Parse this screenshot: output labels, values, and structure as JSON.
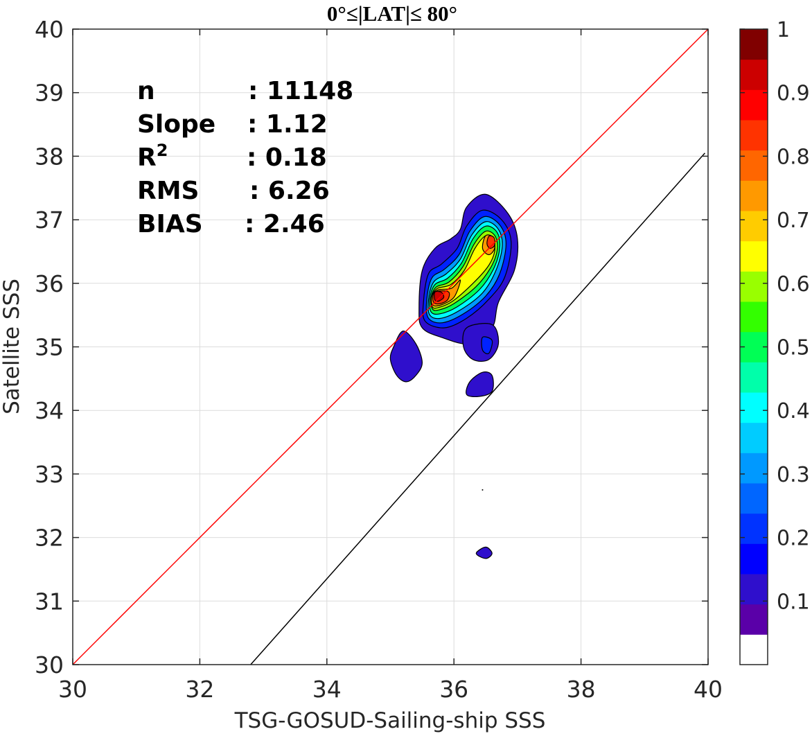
{
  "chart_data": {
    "type": "contour",
    "title": "0°≤|LAT|≤ 80°",
    "xlabel": "TSG-GOSUD-Sailing-ship SSS",
    "ylabel": "Satellite SSS",
    "xlim": [
      30,
      40
    ],
    "ylim": [
      30,
      40
    ],
    "xticks": [
      "30",
      "32",
      "34",
      "36",
      "38",
      "40"
    ],
    "yticks": [
      "30",
      "31",
      "32",
      "33",
      "34",
      "35",
      "36",
      "37",
      "38",
      "39",
      "40"
    ],
    "grid": true,
    "stats": [
      {
        "label": "n",
        "value": ": 11148"
      },
      {
        "label": "Slope",
        "value": ": 1.12"
      },
      {
        "label": "R",
        "sup": "2",
        "value": ": 0.18"
      },
      {
        "label": "RMS",
        "value": ": 6.26"
      },
      {
        "label": "BIAS",
        "value": ": 2.46"
      }
    ],
    "lines": [
      {
        "name": "1:1",
        "color": "#ff0000",
        "points": [
          [
            30,
            30
          ],
          [
            40,
            40
          ]
        ]
      },
      {
        "name": "fit",
        "color": "#000000",
        "points": [
          [
            32.8,
            30
          ],
          [
            39.95,
            38.05
          ]
        ]
      }
    ],
    "colorbar": {
      "ticks": [
        "0.1",
        "0.2",
        "0.3",
        "0.4",
        "0.5",
        "0.6",
        "0.7",
        "0.8",
        "0.9",
        "1"
      ],
      "range": [
        0,
        1
      ],
      "colors": [
        "#ffffff",
        "#5a00a8",
        "#2f0fcc",
        "#0000ff",
        "#0033ff",
        "#0066ff",
        "#0099ff",
        "#00ccff",
        "#00ffff",
        "#00ffaa",
        "#00ff55",
        "#33ff00",
        "#99ff00",
        "#ffff00",
        "#ffcc00",
        "#ff9900",
        "#ff6600",
        "#ff3300",
        "#ff0000",
        "#cc0000",
        "#800000"
      ]
    },
    "contours": [
      {
        "level": 0.05,
        "color": "#2f0fcc",
        "points": [
          [
            35.5,
            35.3
          ],
          [
            35.45,
            35.6
          ],
          [
            35.5,
            36.2
          ],
          [
            35.7,
            36.55
          ],
          [
            35.95,
            36.7
          ],
          [
            36.1,
            36.85
          ],
          [
            36.2,
            37.2
          ],
          [
            36.5,
            37.4
          ],
          [
            36.85,
            37.1
          ],
          [
            37.0,
            36.7
          ],
          [
            36.95,
            36.2
          ],
          [
            36.7,
            35.7
          ],
          [
            36.6,
            35.3
          ],
          [
            36.25,
            35.05
          ],
          [
            35.8,
            35.15
          ]
        ]
      },
      {
        "level": 0.05,
        "color": "#2f0fcc",
        "points": [
          [
            35.05,
            35.0
          ],
          [
            35.0,
            34.8
          ],
          [
            35.1,
            34.55
          ],
          [
            35.25,
            34.45
          ],
          [
            35.4,
            34.55
          ],
          [
            35.5,
            34.75
          ],
          [
            35.4,
            35.05
          ],
          [
            35.2,
            35.25
          ]
        ]
      },
      {
        "level": 0.05,
        "color": "#2f0fcc",
        "points": [
          [
            36.2,
            35.3
          ],
          [
            36.6,
            35.35
          ],
          [
            36.7,
            35.05
          ],
          [
            36.55,
            34.8
          ],
          [
            36.3,
            34.8
          ],
          [
            36.15,
            35.0
          ]
        ]
      },
      {
        "level": 0.05,
        "color": "#2f0fcc",
        "points": [
          [
            36.25,
            34.45
          ],
          [
            36.45,
            34.6
          ],
          [
            36.6,
            34.55
          ],
          [
            36.6,
            34.3
          ],
          [
            36.4,
            34.22
          ],
          [
            36.2,
            34.25
          ]
        ]
      },
      {
        "level": 0.05,
        "color": "#2f0fcc",
        "points": [
          [
            36.35,
            31.75
          ],
          [
            36.5,
            31.85
          ],
          [
            36.6,
            31.75
          ],
          [
            36.5,
            31.67
          ]
        ]
      },
      {
        "level": 0.15,
        "color": "#0022ff",
        "points": [
          [
            36.45,
            35.15
          ],
          [
            36.6,
            35.1
          ],
          [
            36.55,
            34.9
          ],
          [
            36.45,
            34.95
          ]
        ]
      },
      {
        "level": 0.15,
        "color": "#0022ff",
        "points": [
          [
            35.55,
            35.4
          ],
          [
            35.52,
            35.7
          ],
          [
            35.6,
            36.15
          ],
          [
            35.8,
            36.3
          ],
          [
            36.05,
            36.55
          ],
          [
            36.2,
            36.9
          ],
          [
            36.45,
            37.15
          ],
          [
            36.75,
            37.0
          ],
          [
            36.9,
            36.65
          ],
          [
            36.8,
            36.1
          ],
          [
            36.55,
            35.75
          ],
          [
            36.2,
            35.45
          ],
          [
            35.85,
            35.3
          ]
        ]
      },
      {
        "level": 0.25,
        "color": "#0099ff",
        "points": [
          [
            35.6,
            35.45
          ],
          [
            35.57,
            35.72
          ],
          [
            35.65,
            36.08
          ],
          [
            35.85,
            36.22
          ],
          [
            36.08,
            36.45
          ],
          [
            36.25,
            36.82
          ],
          [
            36.48,
            37.05
          ],
          [
            36.72,
            36.92
          ],
          [
            36.82,
            36.62
          ],
          [
            36.72,
            36.15
          ],
          [
            36.5,
            35.8
          ],
          [
            36.15,
            35.52
          ],
          [
            35.82,
            35.38
          ]
        ]
      },
      {
        "level": 0.35,
        "color": "#00ffff",
        "points": [
          [
            35.62,
            35.5
          ],
          [
            35.6,
            35.74
          ],
          [
            35.68,
            36.02
          ],
          [
            35.88,
            36.15
          ],
          [
            36.1,
            36.38
          ],
          [
            36.28,
            36.76
          ],
          [
            36.5,
            36.97
          ],
          [
            36.7,
            36.85
          ],
          [
            36.76,
            36.58
          ],
          [
            36.66,
            36.2
          ],
          [
            36.45,
            35.85
          ],
          [
            36.1,
            35.58
          ],
          [
            35.8,
            35.45
          ]
        ]
      },
      {
        "level": 0.45,
        "color": "#00ff55",
        "points": [
          [
            35.64,
            35.55
          ],
          [
            35.62,
            35.76
          ],
          [
            35.7,
            35.98
          ],
          [
            35.9,
            36.08
          ],
          [
            36.12,
            36.32
          ],
          [
            36.3,
            36.7
          ],
          [
            36.5,
            36.9
          ],
          [
            36.68,
            36.8
          ],
          [
            36.72,
            36.55
          ],
          [
            36.62,
            36.22
          ],
          [
            36.4,
            35.9
          ],
          [
            36.05,
            35.63
          ],
          [
            35.78,
            35.52
          ]
        ]
      },
      {
        "level": 0.55,
        "color": "#99ff00",
        "points": [
          [
            35.66,
            35.6
          ],
          [
            35.64,
            35.78
          ],
          [
            35.72,
            35.94
          ],
          [
            35.92,
            36.02
          ],
          [
            36.14,
            36.26
          ],
          [
            36.32,
            36.62
          ],
          [
            36.5,
            36.82
          ],
          [
            36.65,
            36.74
          ],
          [
            36.68,
            36.52
          ],
          [
            36.58,
            36.25
          ],
          [
            36.35,
            35.95
          ],
          [
            36.0,
            35.68
          ],
          [
            35.76,
            35.58
          ]
        ]
      },
      {
        "level": 0.65,
        "color": "#ffff00",
        "points": [
          [
            35.66,
            35.63
          ],
          [
            35.65,
            35.8
          ],
          [
            35.74,
            35.92
          ],
          [
            35.95,
            35.98
          ],
          [
            36.16,
            36.2
          ],
          [
            36.33,
            36.55
          ],
          [
            36.5,
            36.75
          ],
          [
            36.62,
            36.7
          ],
          [
            36.64,
            36.5
          ],
          [
            36.54,
            36.27
          ],
          [
            36.3,
            36.0
          ],
          [
            35.98,
            35.72
          ],
          [
            35.76,
            35.62
          ]
        ]
      },
      {
        "level": 0.75,
        "color": "#ff9900",
        "points": [
          [
            35.66,
            35.66
          ],
          [
            35.66,
            35.82
          ],
          [
            35.76,
            35.9
          ],
          [
            35.96,
            35.92
          ],
          [
            36.1,
            36.05
          ],
          [
            36.0,
            35.78
          ],
          [
            35.8,
            35.66
          ]
        ]
      },
      {
        "level": 0.75,
        "color": "#ff9900",
        "points": [
          [
            36.45,
            36.55
          ],
          [
            36.5,
            36.75
          ],
          [
            36.62,
            36.72
          ],
          [
            36.64,
            36.55
          ],
          [
            36.55,
            36.45
          ]
        ]
      },
      {
        "level": 0.85,
        "color": "#ff3300",
        "points": [
          [
            35.68,
            35.7
          ],
          [
            35.68,
            35.84
          ],
          [
            35.78,
            35.88
          ],
          [
            35.92,
            35.86
          ],
          [
            35.9,
            35.74
          ],
          [
            35.78,
            35.68
          ]
        ]
      },
      {
        "level": 0.85,
        "color": "#ff3300",
        "points": [
          [
            36.52,
            36.62
          ],
          [
            36.55,
            36.74
          ],
          [
            36.63,
            36.72
          ],
          [
            36.64,
            36.6
          ],
          [
            36.57,
            36.55
          ]
        ]
      },
      {
        "level": 0.95,
        "color": "#cc0000",
        "points": [
          [
            35.7,
            35.74
          ],
          [
            35.7,
            35.86
          ],
          [
            35.8,
            35.86
          ],
          [
            35.84,
            35.78
          ],
          [
            35.76,
            35.72
          ]
        ]
      }
    ]
  }
}
